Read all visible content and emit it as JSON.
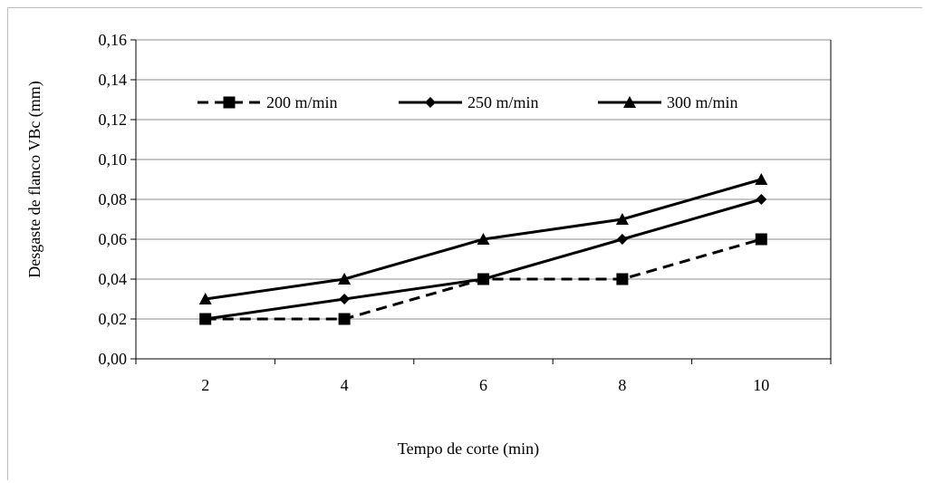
{
  "chart_data": {
    "type": "line",
    "title": "",
    "xlabel": "Tempo de corte (min)",
    "ylabel": "Desgaste de flanco VBc (mm)",
    "categories": [
      "2",
      "4",
      "6",
      "8",
      "10"
    ],
    "x": [
      2,
      4,
      6,
      8,
      10
    ],
    "ylim": [
      0,
      0.16
    ],
    "y_ticks": [
      "0,00",
      "0,02",
      "0,04",
      "0,06",
      "0,08",
      "0,10",
      "0,12",
      "0,14",
      "0,16"
    ],
    "grid": true,
    "legend_position": "top",
    "series": [
      {
        "name": "200 m/min",
        "values": [
          0.02,
          0.02,
          0.04,
          0.04,
          0.06
        ],
        "marker": "square",
        "dash": "dashed",
        "color": "#000000"
      },
      {
        "name": "250 m/min",
        "values": [
          0.02,
          0.03,
          0.04,
          0.06,
          0.08
        ],
        "marker": "diamond",
        "dash": "solid",
        "color": "#000000"
      },
      {
        "name": "300 m/min",
        "values": [
          0.03,
          0.04,
          0.06,
          0.07,
          0.09
        ],
        "marker": "triangle",
        "dash": "solid",
        "color": "#000000"
      }
    ]
  }
}
